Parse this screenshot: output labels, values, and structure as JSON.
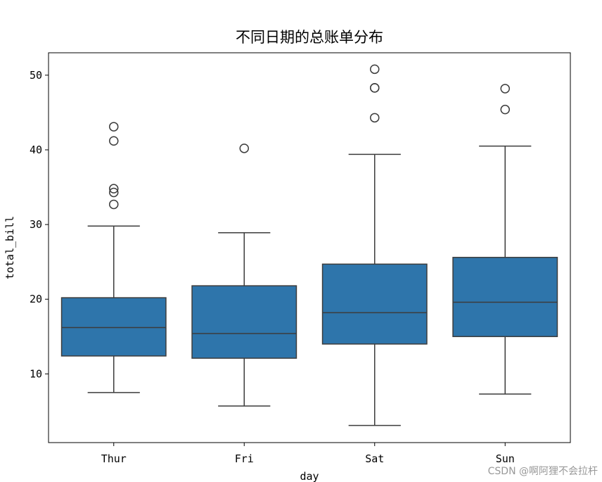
{
  "colors": {
    "box_fill": "#2e75ab",
    "line": "#3c3c3c",
    "background": "#ffffff"
  },
  "watermark": "CSDN @啊阿狸不会拉杆",
  "chart_data": {
    "type": "box",
    "title": "不同日期的总账单分布",
    "xlabel": "day",
    "ylabel": "total_bill",
    "categories": [
      "Thur",
      "Fri",
      "Sat",
      "Sun"
    ],
    "ylim": [
      0.8,
      53.0
    ],
    "yticks": [
      10,
      20,
      30,
      40,
      50
    ],
    "grid": false,
    "boxes": [
      {
        "category": "Thur",
        "whislo": 7.5,
        "q1": 12.4,
        "median": 16.2,
        "q3": 20.2,
        "whishi": 29.8,
        "fliers": [
          32.7,
          34.3,
          34.8,
          41.2,
          43.1
        ]
      },
      {
        "category": "Fri",
        "whislo": 5.7,
        "q1": 12.1,
        "median": 15.4,
        "q3": 21.8,
        "whishi": 28.9,
        "fliers": [
          40.2
        ]
      },
      {
        "category": "Sat",
        "whislo": 3.1,
        "q1": 14.0,
        "median": 18.2,
        "q3": 24.7,
        "whishi": 39.4,
        "fliers": [
          44.3,
          48.3,
          48.3,
          50.8
        ]
      },
      {
        "category": "Sun",
        "whislo": 7.3,
        "q1": 15.0,
        "median": 19.6,
        "q3": 25.6,
        "whishi": 40.5,
        "fliers": [
          45.4,
          48.2
        ]
      }
    ]
  }
}
